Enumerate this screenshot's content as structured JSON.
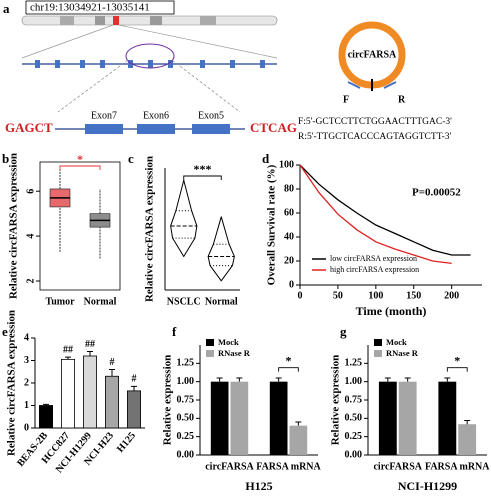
{
  "panel_a": {
    "panel_label": "a",
    "region": "chr19:13034921-13035141",
    "left_seq": "GAGCT",
    "right_seq": "CTCAG",
    "exons": [
      "Exon7",
      "Exon6",
      "Exon5"
    ],
    "circ_label": "circFARSA",
    "forward": "F",
    "reverse": "R",
    "primers": [
      "F:5'-GCTCCTTCTGGAACTTTGAC-3'",
      "R:5'-TTGCTCACCCAGTAGGTCTT-3'"
    ]
  },
  "chart_data": [
    {
      "panel_label": "b",
      "type": "box",
      "ylabel": "Relative circFARSA expression",
      "categories": [
        "Tumor",
        "Normal"
      ],
      "boxes": [
        {
          "min": 3.3,
          "q1": 5.3,
          "median": 5.7,
          "q3": 6.1,
          "max": 7.0,
          "color": "#e8696b"
        },
        {
          "min": 3.0,
          "q1": 4.4,
          "median": 4.7,
          "q3": 5.0,
          "max": 6.1,
          "color": "#8c8c8c"
        }
      ],
      "ylim": [
        1.6,
        7.3
      ],
      "yticks": [
        2,
        4,
        6
      ],
      "significance": "*",
      "significance_color": "#e03030"
    },
    {
      "panel_label": "c",
      "type": "violin",
      "ylabel": "Relative circFARSA expression",
      "categories": [
        "NSCLC",
        "Normal"
      ],
      "violins": [
        {
          "min": 1.1,
          "q1": 1.7,
          "median": 2.1,
          "q3": 2.6,
          "max": 3.6
        },
        {
          "min": 0.3,
          "q1": 0.8,
          "median": 1.1,
          "q3": 1.5,
          "max": 2.4
        }
      ],
      "ylim": [
        0,
        4
      ],
      "significance": "***"
    },
    {
      "panel_label": "d",
      "type": "line",
      "xlabel": "Time (month)",
      "ylabel": "Overall Survival rate (%)",
      "annotation": "P=0.00052",
      "x": [
        0,
        25,
        50,
        75,
        100,
        125,
        150,
        175,
        200,
        225
      ],
      "series": [
        {
          "name": "low circFARSA expression",
          "color": "#000000",
          "values": [
            100,
            84,
            71,
            60,
            50,
            43,
            36,
            29,
            25,
            25
          ]
        },
        {
          "name": "high circFARSA expression",
          "color": "#e02020",
          "values": [
            100,
            77,
            59,
            46,
            36,
            30,
            25,
            20,
            18,
            null
          ]
        }
      ],
      "xlim": [
        0,
        240
      ],
      "ylim": [
        0,
        100
      ],
      "xticks": [
        0,
        50,
        100,
        150,
        200
      ],
      "yticks": [
        0,
        20,
        40,
        60,
        80,
        100
      ],
      "legend": "lower-left"
    },
    {
      "panel_label": "e",
      "type": "bar",
      "ylabel": "Relative circFARSA expression",
      "categories": [
        "BEAS-2B",
        "HCC827",
        "NCI-H1299",
        "NCI-H23",
        "H125"
      ],
      "values": [
        1.0,
        3.05,
        3.2,
        2.3,
        1.65
      ],
      "errors": [
        0.05,
        0.1,
        0.2,
        0.3,
        0.2
      ],
      "colors": [
        "#000000",
        "#ffffff",
        "#d9d9d9",
        "#a6a6a6",
        "#737373"
      ],
      "annotations": [
        null,
        "##",
        "##",
        "#",
        "#"
      ],
      "ylim": [
        0,
        4
      ],
      "yticks": [
        0,
        1,
        2,
        3,
        4
      ]
    },
    {
      "panel_label": "f",
      "type": "grouped_bar",
      "xlabel": "H125",
      "ylabel": "Relative expression",
      "categories": [
        "circFARSA",
        "FARSA mRNA"
      ],
      "series": [
        {
          "name": "Mock",
          "color": "#000000",
          "values": [
            1.0,
            1.0
          ],
          "errors": [
            0.05,
            0.05
          ]
        },
        {
          "name": "RNase R",
          "color": "#a6a6a6",
          "values": [
            1.0,
            0.4
          ],
          "errors": [
            0.05,
            0.05
          ]
        }
      ],
      "ylim": [
        0,
        1.5
      ],
      "yticks": [
        {
          "value": 0,
          "label": "0.00"
        },
        {
          "value": 0.25,
          "label": "0.25"
        },
        {
          "value": 0.5,
          "label": "0.50"
        },
        {
          "value": 0.75,
          "label": "0.75"
        },
        {
          "value": 1,
          "label": "1.00"
        },
        {
          "value": 1.25,
          "label": "1.25"
        }
      ],
      "significance": "*"
    },
    {
      "panel_label": "g",
      "type": "grouped_bar",
      "xlabel": "NCI-H1299",
      "ylabel": "Relative expression",
      "categories": [
        "circFARSA",
        "FARSA mRNA"
      ],
      "series": [
        {
          "name": "Mock",
          "color": "#000000",
          "values": [
            1.0,
            1.0
          ],
          "errors": [
            0.05,
            0.05
          ]
        },
        {
          "name": "RNase R",
          "color": "#a6a6a6",
          "values": [
            1.0,
            0.42
          ],
          "errors": [
            0.05,
            0.05
          ]
        }
      ],
      "ylim": [
        0,
        1.5
      ],
      "yticks": [
        {
          "value": 0,
          "label": "0.00"
        },
        {
          "value": 0.25,
          "label": "0.25"
        },
        {
          "value": 0.5,
          "label": "0.50"
        },
        {
          "value": 0.75,
          "label": "0.75"
        },
        {
          "value": 1,
          "label": "1.00"
        },
        {
          "value": 1.25,
          "label": "1.25"
        }
      ],
      "significance": "*"
    }
  ]
}
